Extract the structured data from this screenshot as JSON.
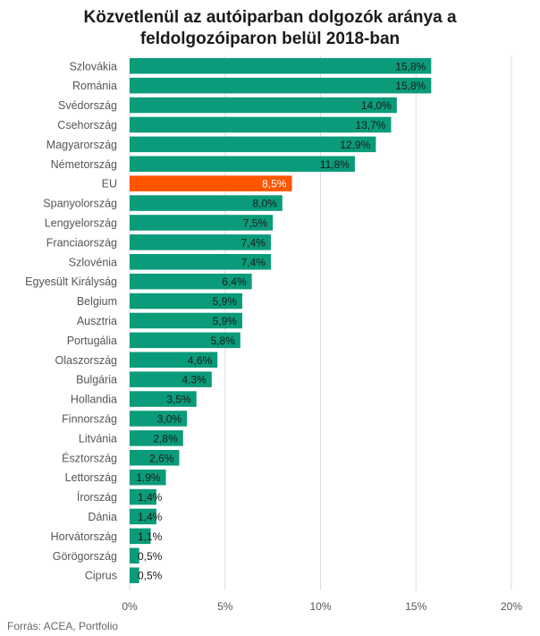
{
  "chart_data": {
    "type": "bar",
    "orientation": "horizontal",
    "title_lines": [
      "Közvetlenül az autóiparban dolgozók aránya a",
      "feldolgozóiparon belül 2018-ban"
    ],
    "categories": [
      "Szlovákia",
      "Románia",
      "Svédország",
      "Csehország",
      "Magyarország",
      "Németország",
      "EU",
      "Spanyolország",
      "Lengyelország",
      "Franciaország",
      "Szlovénia",
      "Egyesült Királyság",
      "Belgium",
      "Ausztria",
      "Portugália",
      "Olaszország",
      "Bulgária",
      "Hollandia",
      "Finnország",
      "Litvánia",
      "Észtország",
      "Lettország",
      "Írország",
      "Dánia",
      "Horvátország",
      "Görögország",
      "Ciprus"
    ],
    "values": [
      15.8,
      15.8,
      14.0,
      13.7,
      12.9,
      11.8,
      8.5,
      8.0,
      7.5,
      7.4,
      7.4,
      6.4,
      5.9,
      5.9,
      5.8,
      4.6,
      4.3,
      3.5,
      3.0,
      2.8,
      2.6,
      1.9,
      1.4,
      1.4,
      1.1,
      0.5,
      0.5
    ],
    "value_labels": [
      "15,8%",
      "15,8%",
      "14,0%",
      "13,7%",
      "12,9%",
      "11,8%",
      "8,5%",
      "8,0%",
      "7,5%",
      "7,4%",
      "7,4%",
      "6,4%",
      "5,9%",
      "5,9%",
      "5,8%",
      "4,6%",
      "4,3%",
      "3,5%",
      "3,0%",
      "2,8%",
      "2,6%",
      "1,9%",
      "1,4%",
      "1,4%",
      "1,1%",
      "0,5%",
      "0,5%"
    ],
    "highlight_category": "EU",
    "xlim": [
      0,
      20
    ],
    "x_ticks": [
      0,
      5,
      10,
      15,
      20
    ],
    "x_tick_labels": [
      "0%",
      "5%",
      "10%",
      "15%",
      "20%"
    ],
    "grid": true,
    "colors": {
      "bar": "#0a9b7a",
      "highlight": "#ff5500",
      "grid": "#dddddd",
      "label": "#555555",
      "value_text": "#1a1a1a",
      "value_text_highlight": "#ffffff"
    }
  },
  "source": "Forrás: ACEA, Portfolio"
}
